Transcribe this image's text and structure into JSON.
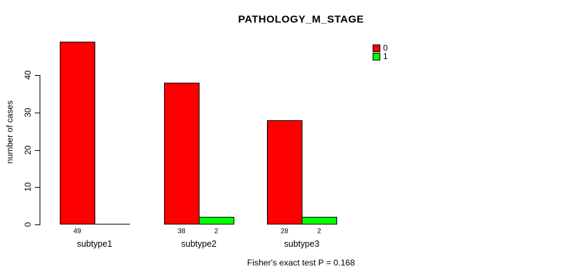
{
  "chart_data": {
    "type": "bar",
    "title": "PATHOLOGY_M_STAGE",
    "ylabel": "number of cases",
    "xlabel": "",
    "categories": [
      "subtype1",
      "subtype2",
      "subtype3"
    ],
    "series": [
      {
        "name": "0",
        "color": "#ff0000",
        "values": [
          49,
          38,
          28
        ],
        "bar_labels": [
          "49",
          "38",
          "28"
        ]
      },
      {
        "name": "1",
        "color": "#00ff00",
        "values": [
          0,
          2,
          2
        ],
        "bar_labels": [
          "",
          "2",
          "2"
        ]
      }
    ],
    "yticks": [
      0,
      10,
      20,
      30,
      40
    ],
    "ylim": [
      0,
      49
    ],
    "grid": false,
    "legend_position": "top-right",
    "footer": "Fisher's exact test P = 0.168"
  }
}
